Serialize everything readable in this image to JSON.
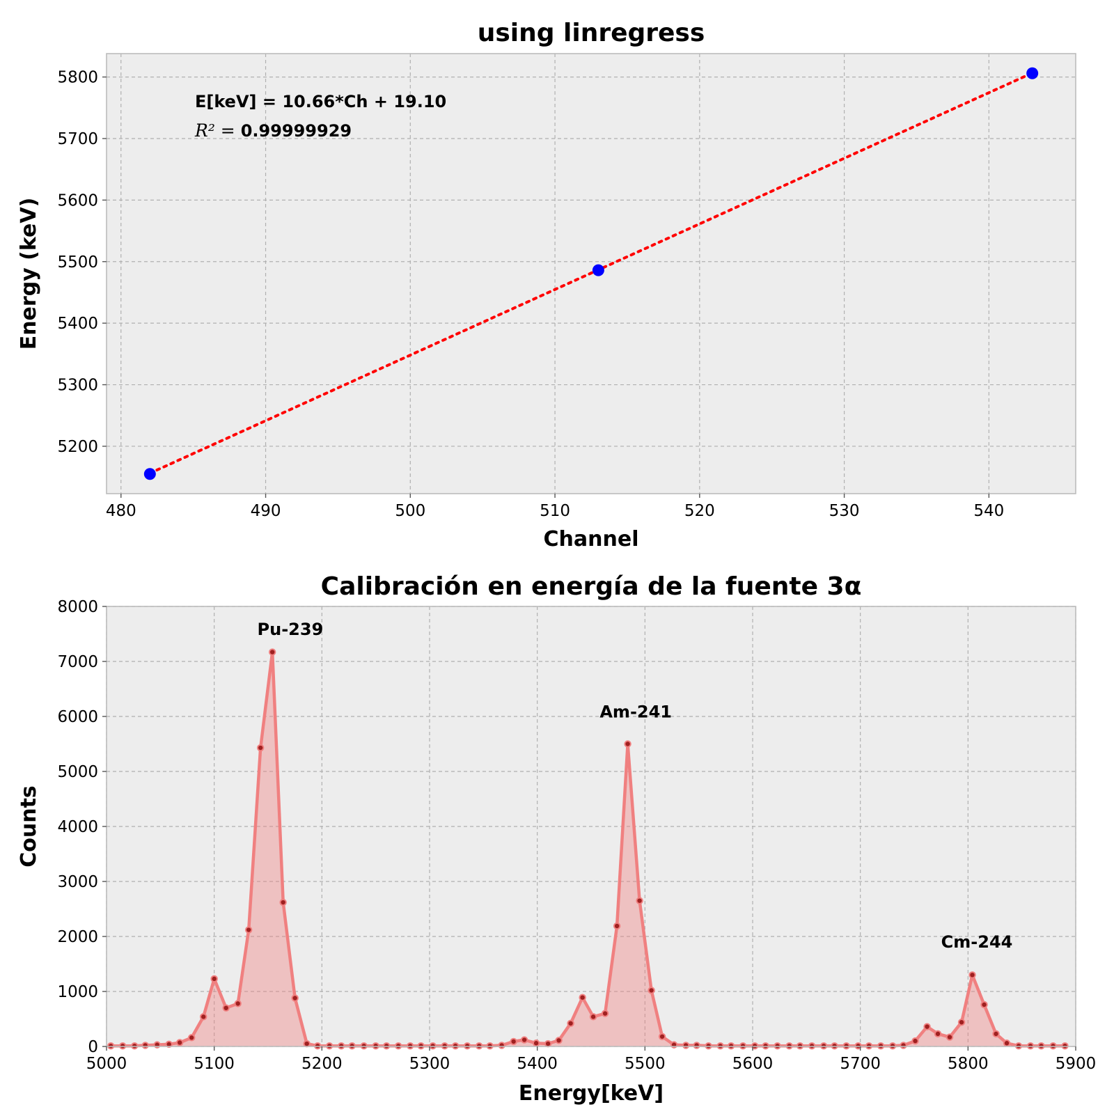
{
  "chart_data": [
    {
      "type": "scatter",
      "title": "using linregress",
      "xlabel": "Channel",
      "ylabel": "Energy (keV)",
      "xlim": [
        479,
        546
      ],
      "ylim": [
        5123,
        5838
      ],
      "xticks": [
        480,
        490,
        500,
        510,
        520,
        530,
        540
      ],
      "yticks": [
        5200,
        5300,
        5400,
        5500,
        5600,
        5700,
        5800
      ],
      "grid": true,
      "points": {
        "x": [
          482,
          513,
          543
        ],
        "y": [
          5155,
          5486,
          5806
        ],
        "color": "#0000ff"
      },
      "fit_line": {
        "x": [
          482,
          543
        ],
        "y": [
          5156.2,
          5806.5
        ],
        "color": "#ff0000",
        "style": "dotted"
      },
      "annotations": {
        "equation": "E[keV] = 10.66*Ch + 19.10",
        "r2_label": "R² = ",
        "r2_value": "0.99999929"
      }
    },
    {
      "type": "area",
      "title": "Calibración en energía de la fuente 3α",
      "xlabel": "Energy[keV]",
      "ylabel": "Counts",
      "xlim": [
        5000,
        5900
      ],
      "ylim": [
        0,
        8000
      ],
      "xticks": [
        5000,
        5100,
        5200,
        5300,
        5400,
        5500,
        5600,
        5700,
        5800,
        5900
      ],
      "yticks": [
        0,
        1000,
        2000,
        3000,
        4000,
        5000,
        6000,
        7000,
        8000
      ],
      "grid": true,
      "series": [
        {
          "color": "#f08080",
          "x": [
            5004,
            5015,
            5026,
            5036,
            5047,
            5058,
            5068,
            5079,
            5090,
            5100,
            5111,
            5122,
            5132,
            5143,
            5154,
            5164,
            5175,
            5186,
            5196,
            5207,
            5218,
            5228,
            5239,
            5250,
            5260,
            5271,
            5282,
            5292,
            5303,
            5314,
            5324,
            5335,
            5346,
            5356,
            5367,
            5378,
            5388,
            5399,
            5410,
            5420,
            5431,
            5442,
            5452,
            5463,
            5474,
            5484,
            5495,
            5506,
            5516,
            5527,
            5538,
            5548,
            5559,
            5570,
            5580,
            5591,
            5602,
            5612,
            5623,
            5634,
            5644,
            5655,
            5666,
            5676,
            5687,
            5698,
            5708,
            5719,
            5730,
            5740,
            5751,
            5762,
            5772,
            5783,
            5794,
            5804,
            5815,
            5826,
            5836,
            5847,
            5858,
            5868,
            5879,
            5890
          ],
          "y": [
            10,
            10,
            10,
            20,
            30,
            40,
            70,
            160,
            540,
            1230,
            700,
            780,
            2120,
            5430,
            7170,
            2620,
            880,
            50,
            10,
            10,
            10,
            10,
            10,
            10,
            10,
            10,
            10,
            10,
            10,
            10,
            10,
            10,
            10,
            10,
            20,
            90,
            120,
            60,
            50,
            110,
            420,
            890,
            540,
            600,
            2190,
            5500,
            2650,
            1020,
            180,
            30,
            20,
            20,
            10,
            10,
            10,
            10,
            10,
            10,
            10,
            10,
            10,
            10,
            10,
            10,
            10,
            10,
            10,
            10,
            10,
            20,
            100,
            360,
            230,
            170,
            440,
            1300,
            760,
            230,
            60,
            10,
            10,
            10,
            10,
            10
          ]
        }
      ],
      "annotations": [
        {
          "text": "Pu-239",
          "x": 5140,
          "y": 7480
        },
        {
          "text": "Am-241",
          "x": 5458,
          "y": 5980
        },
        {
          "text": "Cm-244",
          "x": 5775,
          "y": 1800
        }
      ]
    }
  ]
}
